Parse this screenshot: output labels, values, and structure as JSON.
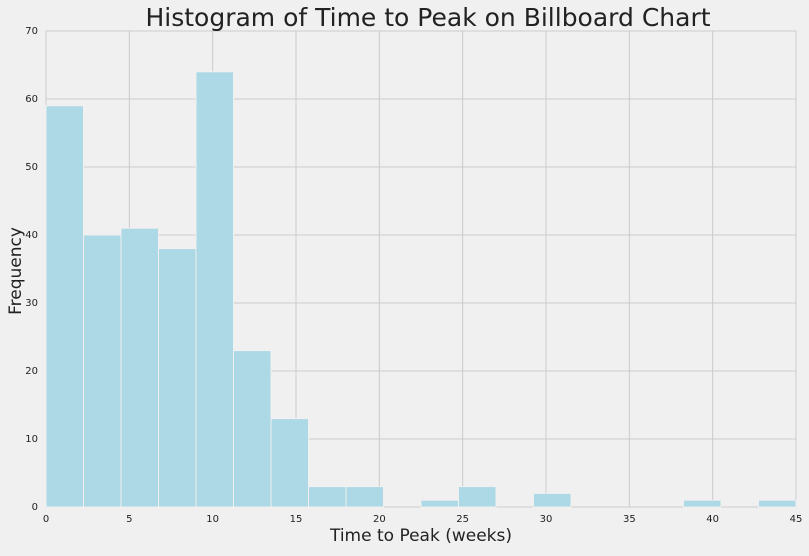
{
  "chart_data": {
    "type": "bar",
    "title": "Histogram of Time to Peak on Billboard Chart",
    "xlabel": "Time to Peak (weeks)",
    "ylabel": "Frequency",
    "xlim": [
      0,
      45
    ],
    "ylim": [
      0,
      70
    ],
    "xticks": [
      0,
      5,
      10,
      15,
      20,
      25,
      30,
      35,
      40,
      45
    ],
    "yticks": [
      0,
      10,
      20,
      30,
      40,
      50,
      60,
      70
    ],
    "grid": true,
    "bin_edges": [
      0,
      2.25,
      4.5,
      6.75,
      9,
      11.25,
      13.5,
      15.75,
      18,
      20.25,
      22.5,
      24.75,
      27,
      29.25,
      31.5,
      33.75,
      36,
      38.25,
      40.5,
      42.75,
      45
    ],
    "values": [
      59,
      40,
      41,
      38,
      64,
      23,
      13,
      3,
      3,
      0,
      1,
      3,
      0,
      2,
      0,
      0,
      0,
      1,
      0,
      1
    ],
    "colors": {
      "background": "#f0f0f0",
      "bar": "#add8e6",
      "grid": "#cbcbcb",
      "text": "#222222"
    }
  }
}
